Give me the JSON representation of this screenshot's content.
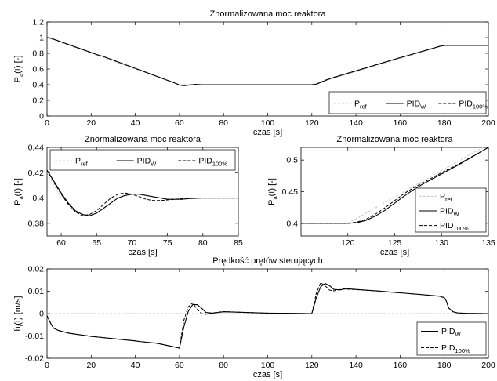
{
  "chart_data": [
    {
      "type": "line",
      "title": "Znormalizowana moc reaktora",
      "xlabel": "czas [s]",
      "ylabel": "P",
      "ylabel_sub": "a",
      "ylabel_tail": "(t) [-]",
      "xlim": [
        0,
        200
      ],
      "ylim": [
        0,
        1.2
      ],
      "xticks": [
        0,
        20,
        40,
        60,
        80,
        100,
        120,
        140,
        160,
        180,
        200
      ],
      "yticks": [
        0,
        0.2,
        0.4,
        0.6,
        0.8,
        1,
        1.2
      ],
      "ytick_labels": [
        "0",
        "0.2",
        "0.4",
        "0.6",
        "0.8",
        "1",
        "1.2"
      ],
      "legend_position": "bottom-right",
      "series": [
        {
          "name": "P",
          "name_sub": "ref",
          "style": "gray-dash",
          "x": [
            0,
            60,
            120,
            180,
            200
          ],
          "y": [
            1.0,
            0.4,
            0.4,
            0.9,
            0.9
          ]
        },
        {
          "name": "PID",
          "name_sub": "W",
          "style": "solid",
          "x": [
            0,
            2,
            24,
            25,
            58,
            60,
            62,
            64,
            67,
            70,
            80,
            100,
            118,
            120,
            122,
            125,
            128,
            160,
            162,
            178,
            180,
            181,
            200
          ],
          "y": [
            1.0,
            0.99,
            0.77,
            0.765,
            0.42,
            0.395,
            0.387,
            0.393,
            0.403,
            0.4,
            0.4,
            0.4,
            0.4,
            0.4,
            0.405,
            0.44,
            0.475,
            0.745,
            0.76,
            0.89,
            0.9,
            0.9,
            0.9
          ]
        },
        {
          "name": "PID",
          "name_sub": "100%",
          "style": "dash",
          "x": [
            0,
            2,
            24,
            25,
            58,
            60,
            62,
            64,
            67,
            70,
            80,
            100,
            118,
            120,
            122,
            125,
            128,
            160,
            162,
            178,
            180,
            181,
            200
          ],
          "y": [
            1.0,
            0.99,
            0.77,
            0.765,
            0.42,
            0.396,
            0.388,
            0.395,
            0.404,
            0.4,
            0.4,
            0.4,
            0.4,
            0.4,
            0.407,
            0.445,
            0.478,
            0.745,
            0.76,
            0.89,
            0.9,
            0.9,
            0.9
          ]
        }
      ]
    },
    {
      "type": "line",
      "title": "Znormalizowana moc reaktora",
      "xlabel": "czas [s]",
      "ylabel": "P",
      "ylabel_sub": "a",
      "ylabel_tail": "(t) [-]",
      "xlim": [
        58,
        85
      ],
      "ylim": [
        0.37,
        0.44
      ],
      "xticks": [
        60,
        65,
        70,
        75,
        80,
        85
      ],
      "yticks": [
        0.38,
        0.4,
        0.42,
        0.44
      ],
      "ytick_labels": [
        "0.38",
        "0.4",
        "0.42",
        "0.44"
      ],
      "legend_position": "top",
      "series": [
        {
          "name": "P",
          "name_sub": "ref",
          "style": "gray-dash",
          "x": [
            58,
            60,
            85
          ],
          "y": [
            0.42,
            0.4,
            0.4
          ]
        },
        {
          "name": "PID",
          "name_sub": "W",
          "style": "solid",
          "x": [
            58,
            59,
            60,
            61,
            62,
            63,
            64,
            65,
            66,
            67,
            68,
            69,
            70,
            71,
            72,
            73,
            74,
            75,
            76,
            77,
            78,
            79,
            80,
            82,
            85
          ],
          "y": [
            0.422,
            0.413,
            0.404,
            0.396,
            0.39,
            0.387,
            0.386,
            0.388,
            0.392,
            0.396,
            0.4,
            0.402,
            0.403,
            0.403,
            0.402,
            0.401,
            0.4,
            0.399,
            0.399,
            0.399,
            0.3995,
            0.3998,
            0.4,
            0.4,
            0.4
          ]
        },
        {
          "name": "PID",
          "name_sub": "100%",
          "style": "dash",
          "x": [
            58,
            59,
            60,
            61,
            62,
            63,
            64,
            65,
            66,
            67,
            68,
            69,
            70,
            71,
            72,
            73,
            74,
            75,
            76,
            77,
            78,
            80,
            85
          ],
          "y": [
            0.422,
            0.412,
            0.403,
            0.395,
            0.389,
            0.386,
            0.387,
            0.39,
            0.395,
            0.4,
            0.403,
            0.404,
            0.403,
            0.401,
            0.399,
            0.398,
            0.398,
            0.3985,
            0.399,
            0.3995,
            0.4,
            0.4,
            0.4
          ]
        }
      ]
    },
    {
      "type": "line",
      "title": "Znormalizowana moc reaktora",
      "xlabel": "czas [s]",
      "ylabel": "P",
      "ylabel_sub": "a",
      "ylabel_tail": "(t) [-]",
      "xlim": [
        115,
        135
      ],
      "ylim": [
        0.38,
        0.52
      ],
      "xticks": [
        120,
        125,
        130,
        135
      ],
      "yticks": [
        0.4,
        0.45,
        0.5
      ],
      "ytick_labels": [
        "0.4",
        "0.45",
        "0.5"
      ],
      "legend_position": "bottom-right",
      "series": [
        {
          "name": "P",
          "name_sub": "ref",
          "style": "gray-dash",
          "x": [
            115,
            120,
            135
          ],
          "y": [
            0.4,
            0.4,
            0.525
          ]
        },
        {
          "name": "PID",
          "name_sub": "W",
          "style": "solid",
          "x": [
            115,
            120,
            121,
            122,
            123,
            124,
            125,
            126,
            127,
            128,
            130,
            132,
            135
          ],
          "y": [
            0.4,
            0.4,
            0.401,
            0.405,
            0.412,
            0.421,
            0.432,
            0.443,
            0.453,
            0.462,
            0.478,
            0.494,
            0.52
          ]
        },
        {
          "name": "PID",
          "name_sub": "100%",
          "style": "dash",
          "x": [
            115,
            120,
            121,
            122,
            123,
            124,
            125,
            126,
            127,
            128,
            130,
            132,
            135
          ],
          "y": [
            0.4,
            0.4,
            0.402,
            0.407,
            0.415,
            0.425,
            0.436,
            0.447,
            0.456,
            0.464,
            0.48,
            0.495,
            0.52
          ]
        }
      ]
    },
    {
      "type": "line",
      "title": "Prędkość prętów sterujących",
      "xlabel": "czas [s]",
      "ylabel": "ḣ",
      "ylabel_sub": "i",
      "ylabel_tail": "(t) [m/s]",
      "xlim": [
        0,
        200
      ],
      "ylim": [
        -0.02,
        0.02
      ],
      "xticks": [
        0,
        20,
        40,
        60,
        80,
        100,
        120,
        140,
        160,
        180,
        200
      ],
      "yticks": [
        -0.02,
        -0.01,
        0,
        0.01,
        0.02
      ],
      "ytick_labels": [
        "-0.02",
        "-0.01",
        "0",
        "0.01",
        "0.02"
      ],
      "legend_position": "bottom-right",
      "series": [
        {
          "name": "",
          "name_sub": "",
          "style": "gray-dash",
          "x": [
            0,
            200
          ],
          "y": [
            0,
            0
          ]
        },
        {
          "name": "PID",
          "name_sub": "W",
          "style": "solid",
          "x": [
            0,
            1,
            2,
            3,
            5,
            10,
            20,
            30,
            40,
            42,
            50,
            59,
            60,
            62,
            64,
            66,
            68,
            70,
            72,
            75,
            80,
            90,
            100,
            110,
            119,
            120,
            122,
            124,
            126,
            128,
            130,
            133,
            135,
            140,
            150,
            160,
            170,
            178,
            179,
            180,
            181,
            182,
            184,
            186,
            190,
            200
          ],
          "y": [
            -0.001,
            -0.003,
            -0.005,
            -0.0065,
            -0.0075,
            -0.0088,
            -0.0102,
            -0.0112,
            -0.0122,
            -0.0125,
            -0.0133,
            -0.0152,
            -0.0155,
            -0.006,
            0.001,
            0.004,
            0.004,
            0.0025,
            0.0005,
            0.0002,
            0.0008,
            0.0005,
            0.0002,
            0.0001,
            0.0,
            0.0,
            0.007,
            0.012,
            0.0135,
            0.0125,
            0.0108,
            0.0106,
            0.0112,
            0.0108,
            0.0101,
            0.0093,
            0.0085,
            0.0078,
            0.0074,
            0.0072,
            0.0055,
            0.0025,
            0.0008,
            0.0003,
            0.0001,
            0.0
          ]
        },
        {
          "name": "PID",
          "name_sub": "100%",
          "style": "dash",
          "x": [
            0,
            1,
            2,
            3,
            5,
            10,
            20,
            30,
            40,
            42,
            50,
            59,
            60,
            62,
            64,
            66,
            68,
            70,
            72,
            75,
            80,
            90,
            100,
            110,
            119,
            120,
            122,
            124,
            126,
            128,
            130,
            133,
            135,
            140,
            150,
            160,
            170,
            178,
            179,
            180,
            181,
            182,
            184,
            186,
            190,
            200
          ],
          "y": [
            -0.001,
            -0.003,
            -0.005,
            -0.0065,
            -0.0075,
            -0.0088,
            -0.0102,
            -0.0112,
            -0.0122,
            -0.0125,
            -0.0133,
            -0.0152,
            -0.0155,
            -0.003,
            0.003,
            0.0048,
            0.002,
            0.0,
            -0.0003,
            0.0003,
            0.0009,
            0.0005,
            0.0002,
            0.0001,
            0.0,
            0.0,
            0.009,
            0.0138,
            0.0125,
            0.0105,
            0.0102,
            0.0108,
            0.011,
            0.0107,
            0.0101,
            0.0093,
            0.0085,
            0.0078,
            0.0074,
            0.0072,
            0.0055,
            0.0025,
            0.0008,
            0.0003,
            0.0001,
            0.0
          ]
        }
      ]
    }
  ]
}
